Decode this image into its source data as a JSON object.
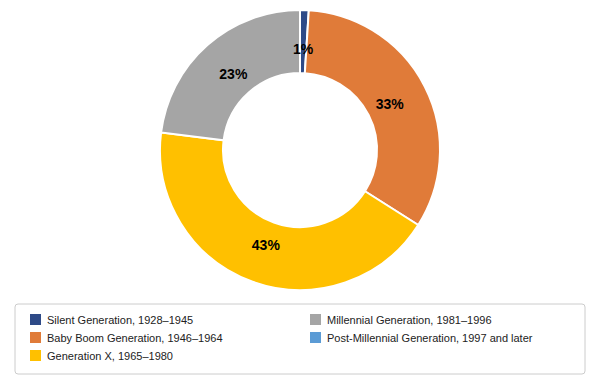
{
  "chart_data": {
    "type": "pie",
    "categories": [
      "Silent Generation, 1928–1945",
      "Baby Boom Generation, 1946–1964",
      "Generation X, 1965–1980",
      "Millennial Generation, 1981–1996",
      "Post-Millennial Generation, 1997 and later"
    ],
    "values": [
      1,
      33,
      43,
      23,
      0
    ],
    "value_labels": [
      "1%",
      "33%",
      "43%",
      "23%",
      null
    ],
    "colors": [
      "#2e4a87",
      "#e07b39",
      "#ffc000",
      "#a5a5a5",
      "#5b9bd5"
    ],
    "data_labels": true,
    "legend": "bottom"
  }
}
